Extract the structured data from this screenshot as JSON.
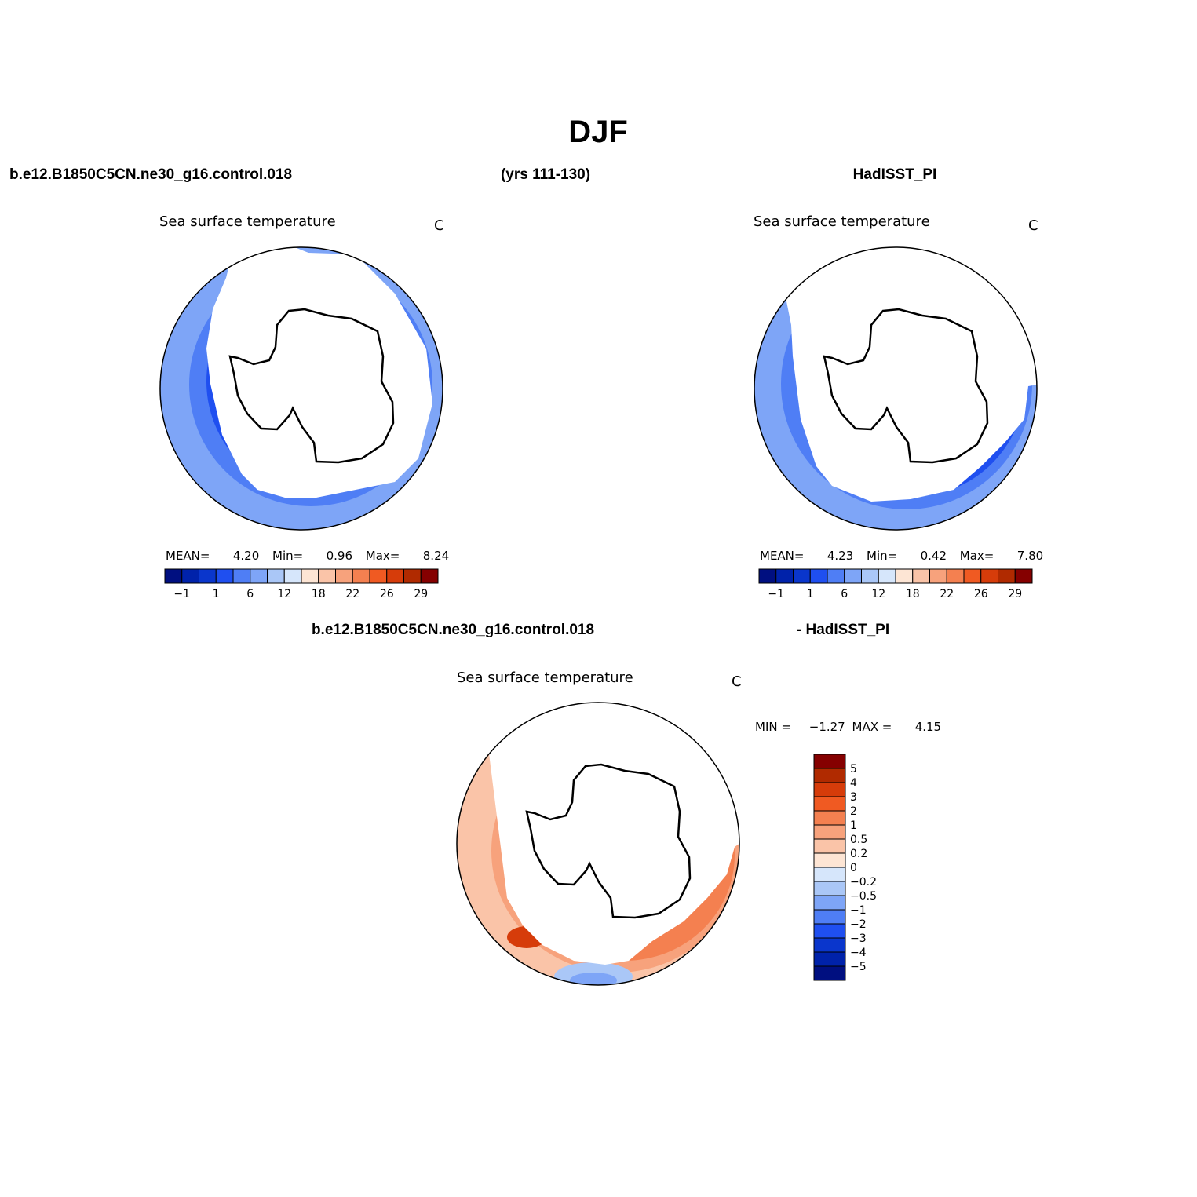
{
  "figure": {
    "title": "DJF",
    "top_left_label": "b.e12.B1850C5CN.ne30_g16.control.018",
    "top_center_label": "(yrs 111-130)",
    "top_right_label": "HadISST_PI",
    "diff_left_label": "b.e12.B1850C5CN.ne30_g16.control.018",
    "diff_right_label": "- HadISST_PI"
  },
  "panels": [
    {
      "title": "Sea surface temperature",
      "units": "C",
      "stats": {
        "mean_label": "MEAN=",
        "mean": "4.20",
        "min_label": "Min=",
        "min": "0.96",
        "max_label": "Max=",
        "max": "8.24"
      }
    },
    {
      "title": "Sea surface temperature",
      "units": "C",
      "stats": {
        "mean_label": "MEAN=",
        "mean": "4.23",
        "min_label": "Min=",
        "min": "0.42",
        "max_label": "Max=",
        "max": "7.80"
      }
    },
    {
      "title": "Sea surface temperature",
      "units": "C",
      "stats": {
        "min_label": "MIN =",
        "min": "−1.27",
        "max_label": "MAX =",
        "max": "4.15"
      }
    }
  ],
  "colorbar_abs": {
    "colors": [
      "#000f80",
      "#0022aa",
      "#0a36cc",
      "#1f4ff0",
      "#4f7ef5",
      "#7ea5f7",
      "#aac7f7",
      "#d6e6fb",
      "#fde5d4",
      "#fac4a8",
      "#f7a27c",
      "#f48050",
      "#f05a22",
      "#d63c0a",
      "#b02a00",
      "#850000"
    ],
    "tick_labels": [
      "−1",
      "1",
      "6",
      "12",
      "18",
      "22",
      "26",
      "29"
    ]
  },
  "colorbar_diff": {
    "colors": [
      "#000f80",
      "#0022aa",
      "#0a36cc",
      "#1f4ff0",
      "#4f7ef5",
      "#7ea5f7",
      "#aac7f7",
      "#d6e6fb",
      "#fde5d4",
      "#fac4a8",
      "#f7a27c",
      "#f48050",
      "#f05a22",
      "#d63c0a",
      "#b02a00",
      "#850000"
    ],
    "tick_labels": [
      "5",
      "4",
      "3",
      "2",
      "1",
      "0.5",
      "0.2",
      "0",
      "−0.2",
      "−0.5",
      "−1",
      "−2",
      "−3",
      "−4",
      "−5"
    ]
  }
}
